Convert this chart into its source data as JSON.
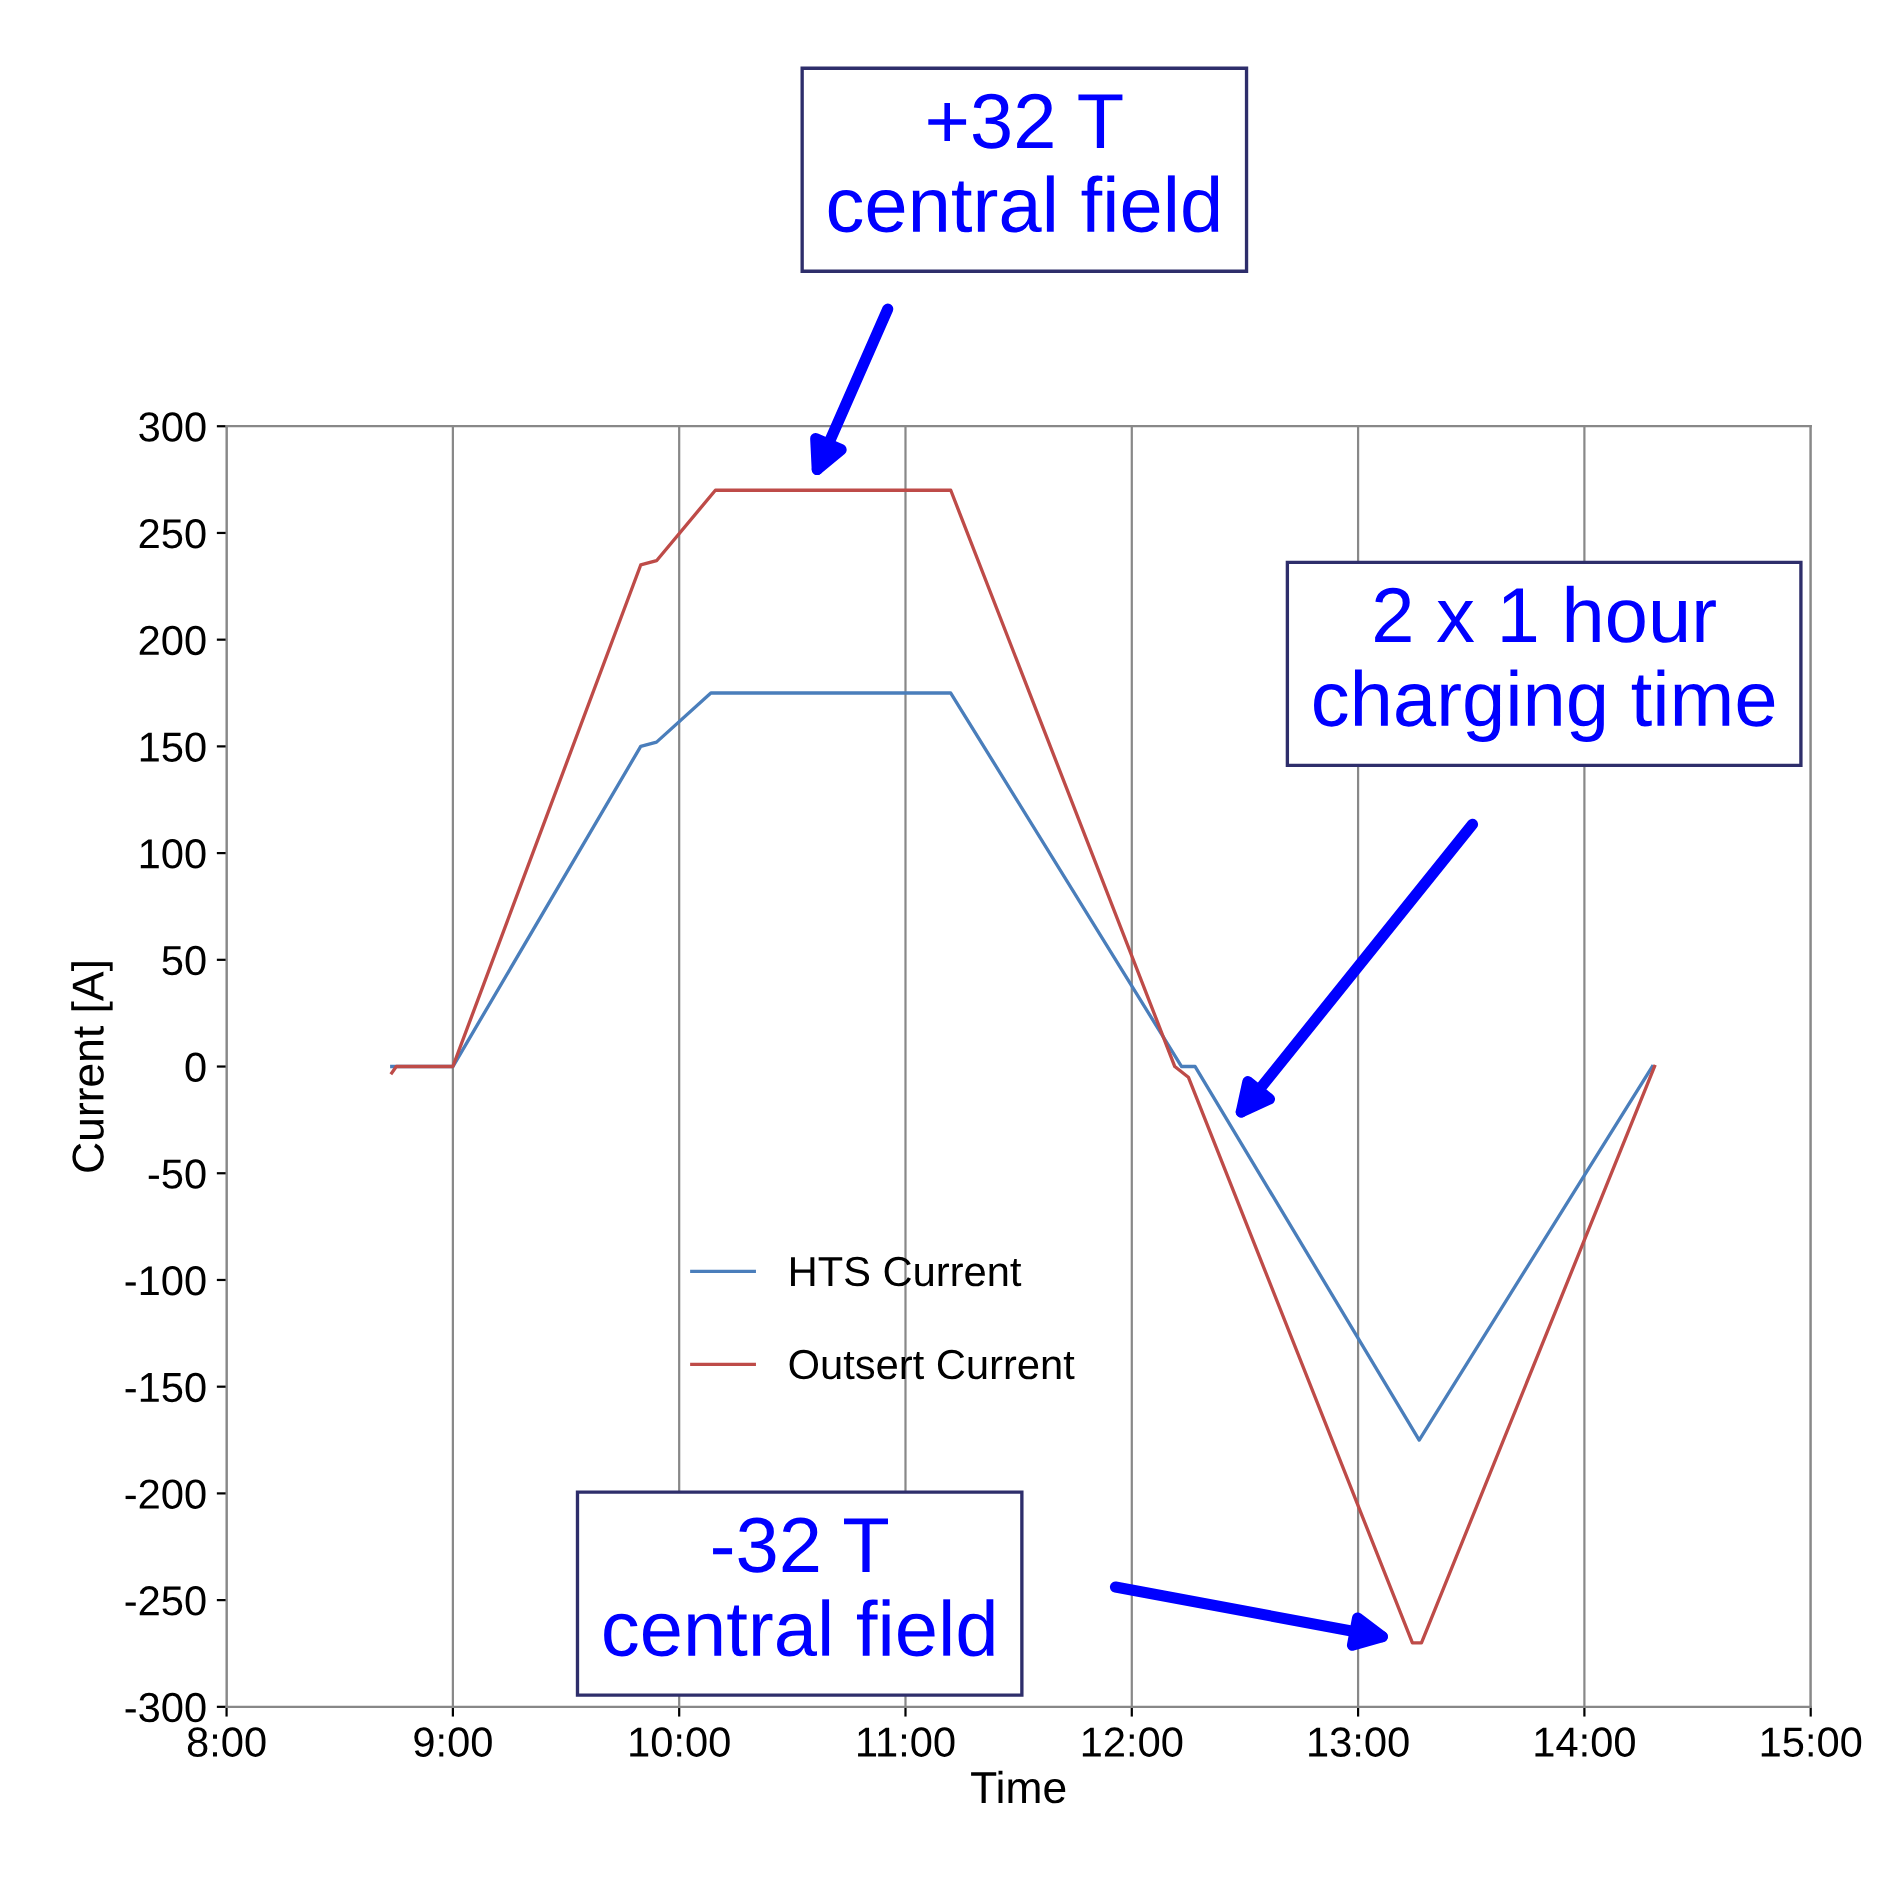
{
  "chart_data": {
    "type": "line",
    "xlabel": "Time",
    "ylabel": "Current [A]",
    "xlim": [
      8,
      15
    ],
    "ylim": [
      -300,
      300
    ],
    "xticks": [
      {
        "value": 8,
        "label": "8:00"
      },
      {
        "value": 9,
        "label": "9:00"
      },
      {
        "value": 10,
        "label": "10:00"
      },
      {
        "value": 11,
        "label": "11:00"
      },
      {
        "value": 12,
        "label": "12:00"
      },
      {
        "value": 13,
        "label": "13:00"
      },
      {
        "value": 14,
        "label": "14:00"
      },
      {
        "value": 15,
        "label": "15:00"
      }
    ],
    "yticks": [
      -300,
      -250,
      -200,
      -150,
      -100,
      -50,
      0,
      50,
      100,
      150,
      200,
      250,
      300
    ],
    "grid": "x",
    "legend": "bottom left",
    "marker": "none",
    "line_style": "solid",
    "series": [
      {
        "name": "HTS Current",
        "color": "#4a7ebb",
        "x": [
          8.73,
          9.0,
          9.83,
          9.9,
          10.14,
          11.2,
          12.22,
          12.28,
          13.27,
          14.3
        ],
        "values": [
          0,
          0,
          150,
          152,
          175,
          175,
          0,
          0,
          -175,
          0
        ]
      },
      {
        "name": "Outsert Current",
        "color": "#be4b48",
        "x": [
          8.73,
          8.75,
          9.0,
          9.83,
          9.9,
          10.16,
          11.2,
          12.19,
          12.25,
          13.24,
          13.28,
          14.31
        ],
        "values": [
          -3,
          0,
          0,
          235,
          237,
          270,
          270,
          0,
          -5,
          -270,
          -270,
          0
        ]
      }
    ],
    "annotations": [
      "+32 T\ncentral field",
      "2 x 1 hour\ncharging time",
      "-32 T\ncentral field"
    ]
  }
}
